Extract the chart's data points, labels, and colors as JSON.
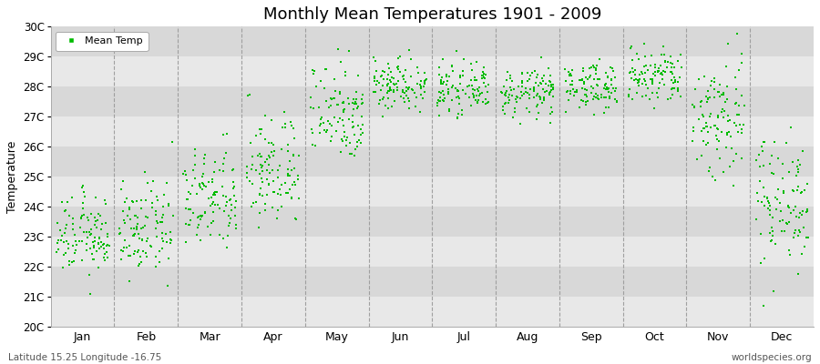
{
  "title": "Monthly Mean Temperatures 1901 - 2009",
  "ylabel": "Temperature",
  "xlabel_labels": [
    "Jan",
    "Feb",
    "Mar",
    "Apr",
    "May",
    "Jun",
    "Jul",
    "Aug",
    "Sep",
    "Oct",
    "Nov",
    "Dec"
  ],
  "legend_label": "Mean Temp",
  "dot_color": "#00BB00",
  "fig_bg_color": "#FFFFFF",
  "plot_bg_color": "#FFFFFF",
  "stripe_colors": [
    "#E8E8E8",
    "#D8D8D8"
  ],
  "ylim": [
    20,
    30
  ],
  "ytick_labels": [
    "20C",
    "21C",
    "22C",
    "23C",
    "24C",
    "25C",
    "26C",
    "27C",
    "28C",
    "29C",
    "30C"
  ],
  "ytick_values": [
    20,
    21,
    22,
    23,
    24,
    25,
    26,
    27,
    28,
    29,
    30
  ],
  "footer_left": "Latitude 15.25 Longitude -16.75",
  "footer_right": "worldspecies.org",
  "years": 109,
  "monthly_means": [
    23.0,
    23.2,
    24.2,
    25.2,
    27.2,
    28.1,
    27.9,
    27.8,
    28.0,
    28.3,
    27.0,
    24.2
  ],
  "monthly_stds": [
    0.65,
    0.75,
    0.85,
    0.95,
    0.85,
    0.45,
    0.38,
    0.4,
    0.38,
    0.5,
    1.1,
    1.1
  ],
  "marker_size": 2.5,
  "marker_style": "s",
  "dashed_line_color": "#999999",
  "grid_line_color": "#CCCCCC"
}
